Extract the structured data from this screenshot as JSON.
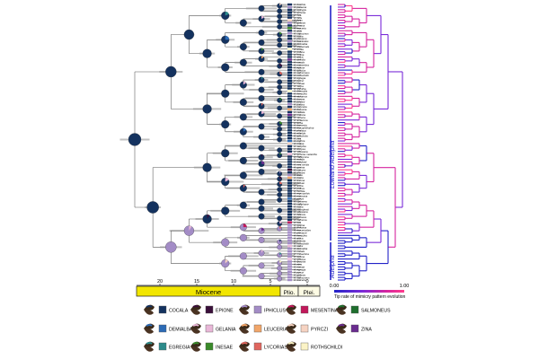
{
  "time_axis": {
    "ticks": [
      "20",
      "15",
      "10",
      "5",
      "0"
    ],
    "epochs": [
      "Miocene",
      "Plio.",
      "Plei."
    ]
  },
  "clades": {
    "upper": "Lowland Adelpha",
    "lower": "Adelpha"
  },
  "rate_scale": {
    "min": "0.00",
    "max": "1.00",
    "label": "Tip rate of mimicry pattern evolution",
    "colors": [
      "#2323c8",
      "#7a2bd8",
      "#d6259f",
      "#ff3c8c"
    ]
  },
  "tip_names": [
    "A. boethia",
    "A. paraena",
    "A. epizygis",
    "A. lycorias",
    "A. nea",
    "A. zina",
    "A. hyas",
    "A. gelania",
    "A. thoasa",
    "A. leuceria",
    "A. abia",
    "A. capucinus",
    "A. naxia",
    "A. plesaure",
    "A. basiloides",
    "A. demialba",
    "A. diademata",
    "A. erotia",
    "A. pollina",
    "A. irmina",
    "A. attica",
    "A. delinita",
    "A. cocala",
    "A. mesentina",
    "A. epione",
    "A. iphiclus",
    "A. salmoneus",
    "A. rothschildi",
    "A. egregia",
    "A. pyrczi",
    "A. inesae",
    "A. serpa",
    "A. olynthia",
    "A. thessalia",
    "A. heraclea",
    "A. sichaeus",
    "A. boreas",
    "A. jordani",
    "A. justina",
    "A. coryneta",
    "A. fessonia",
    "A. radiata",
    "A. melona",
    "A. ximena",
    "A. amazona",
    "A. lerna",
    "A. barnesia",
    "A. leucophthalma",
    "A. phylaca",
    "A. ethelda",
    "A. iphicleola",
    "A. zea",
    "A. mythra",
    "A. malea",
    "A. seriphia",
    "A. donysa",
    "A. stilesiana",
    "A. lycorias melanthe",
    "A. californica",
    "A. eulalia",
    "A. bredowii",
    "A. nea sentia",
    "A. gavina",
    "A. corcyra",
    "A. shuara",
    "A. alala",
    "A. tracta",
    "A. levona",
    "A. lamasi",
    "A. aricia",
    "A. poltius",
    "A. herbita",
    "A. erymanthis",
    "A. messana",
    "A. pithys",
    "A. cytherea",
    "A. calliphane",
    "A. naxia",
    "A. saundersii",
    "A. stilesiana",
    "A. fabricia",
    "A. paroeca",
    "A. zalmona",
    "A. ixia",
    "A. gavina",
    "A. phliassa",
    "A. leucerioides",
    "A. plesaure",
    "A. heraclea",
    "A. attica",
    "A. boeotia",
    "A. rothschildi",
    "A. salus",
    "A. demialba",
    "A. cocala",
    "A. mesentina",
    "A. epione",
    "A. iphiclus",
    "A. lycorias",
    "A. zina",
    "A. inesae",
    "A. egregia",
    "A. pyrczi",
    "A. gelania",
    "A. salmoneus",
    "A. leuceria"
  ],
  "legend": [
    {
      "label": "COCALA",
      "color": "#14325f"
    },
    {
      "label": "DEMIALBA",
      "color": "#2c6bb6"
    },
    {
      "label": "EGREGIA",
      "color": "#2c8b8b"
    },
    {
      "label": "EPIONE",
      "color": "#3a0f3a"
    },
    {
      "label": "GELANIA",
      "color": "#e9b7d8"
    },
    {
      "label": "INESAE",
      "color": "#3a8a2a"
    },
    {
      "label": "IPHICLUS",
      "color": "#a38cc6"
    },
    {
      "label": "LEUCERIA",
      "color": "#f2a66a"
    },
    {
      "label": "LYCORIAS",
      "color": "#e0665e"
    },
    {
      "label": "MESENTINA",
      "color": "#c2185b"
    },
    {
      "label": "PYRCZI",
      "color": "#f6d3c2"
    },
    {
      "label": "ROTHSCHILDI",
      "color": "#fbf3c6"
    },
    {
      "label": "SALMONEUS",
      "color": "#1f6f2e"
    },
    {
      "label": "ZINA",
      "color": "#6a2c8f"
    }
  ]
}
